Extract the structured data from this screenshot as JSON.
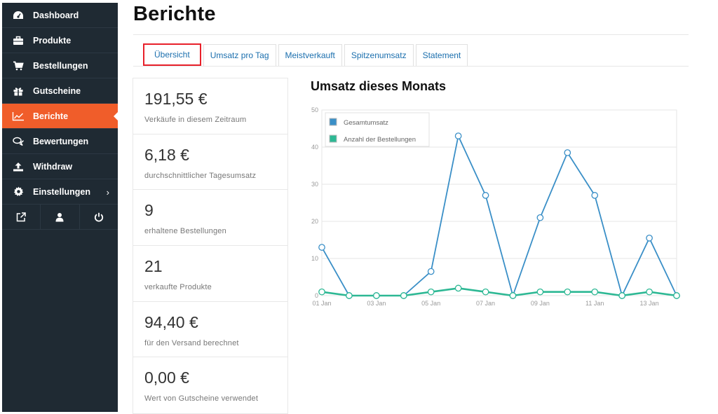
{
  "sidebar": {
    "items": [
      {
        "label": "Dashboard",
        "icon": "dashboard-icon"
      },
      {
        "label": "Produkte",
        "icon": "briefcase-icon"
      },
      {
        "label": "Bestellungen",
        "icon": "cart-icon"
      },
      {
        "label": "Gutscheine",
        "icon": "gift-icon"
      },
      {
        "label": "Berichte",
        "icon": "line-chart-icon"
      },
      {
        "label": "Bewertungen",
        "icon": "comments-icon"
      },
      {
        "label": "Withdraw",
        "icon": "upload-icon"
      },
      {
        "label": "Einstellungen",
        "icon": "gear-icon"
      }
    ],
    "active_index": 4,
    "bottom_icons": [
      "external-link-icon",
      "user-icon",
      "power-icon"
    ],
    "colors": {
      "bg": "#1f2a33",
      "active": "#f05d2a"
    }
  },
  "page": {
    "title": "Berichte"
  },
  "tabs": [
    {
      "label": "Übersicht"
    },
    {
      "label": "Umsatz pro Tag"
    },
    {
      "label": "Meistverkauft"
    },
    {
      "label": "Spitzenumsatz"
    },
    {
      "label": "Statement"
    }
  ],
  "stats": [
    {
      "value": "191,55 €",
      "label": "Verkäufe in diesem Zeitraum"
    },
    {
      "value": "6,18 €",
      "label": "durchschnittlicher Tagesumsatz"
    },
    {
      "value": "9",
      "label": "erhaltene Bestellungen"
    },
    {
      "value": "21",
      "label": "verkaufte Produkte"
    },
    {
      "value": "94,40 €",
      "label": "für den Versand berechnet"
    },
    {
      "value": "0,00 €",
      "label": "Wert von Gutscheine verwendet"
    }
  ],
  "chart_title": "Umsatz dieses Monats",
  "chart_data": {
    "type": "line",
    "title": "Umsatz dieses Monats",
    "x": [
      1,
      2,
      3,
      4,
      5,
      6,
      7,
      8,
      9,
      10,
      11,
      12,
      13,
      14
    ],
    "x_tick_labels": [
      {
        "day": 1,
        "label": "01 Jan"
      },
      {
        "day": 3,
        "label": "03 Jan"
      },
      {
        "day": 5,
        "label": "05 Jan"
      },
      {
        "day": 7,
        "label": "07 Jan"
      },
      {
        "day": 9,
        "label": "09 Jan"
      },
      {
        "day": 11,
        "label": "11 Jan"
      },
      {
        "day": 13,
        "label": "13 Jan"
      }
    ],
    "y_ticks": [
      0,
      10,
      20,
      30,
      40,
      50
    ],
    "ylim": [
      0,
      50
    ],
    "series": [
      {
        "name": "Gesamtumsatz",
        "color": "#3a8fc7",
        "values": [
          13,
          0,
          0,
          0,
          6.5,
          43,
          27,
          0,
          21,
          38.5,
          27,
          0,
          15.5,
          0
        ]
      },
      {
        "name": "Anzahl der Bestellungen",
        "color": "#2db894",
        "values": [
          1,
          0,
          0,
          0,
          1,
          2,
          1,
          0,
          1,
          1,
          1,
          0,
          1,
          0
        ]
      }
    ],
    "legend_position": "top-left",
    "grid": true
  }
}
